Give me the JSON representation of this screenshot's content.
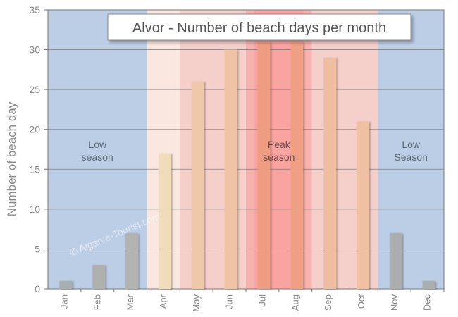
{
  "chart_data": {
    "type": "bar",
    "title": "Alvor - Number of beach days per month",
    "xlabel": "",
    "ylabel": "Number of beach day",
    "ylim": [
      0,
      35
    ],
    "yticks": [
      0,
      5,
      10,
      15,
      20,
      25,
      30,
      35
    ],
    "grid": true,
    "legend": "none",
    "categories": [
      "Jan",
      "Feb",
      "Mar",
      "Apr",
      "May",
      "Jun",
      "Jul",
      "Aug",
      "Sep",
      "Oct",
      "Nov",
      "Dec"
    ],
    "values": [
      1,
      3,
      7,
      17,
      26,
      30,
      31,
      31,
      29,
      21,
      7,
      1
    ],
    "seasons": [
      {
        "name": "low-season-start",
        "label_lines": [
          "Low",
          "season"
        ],
        "months": [
          "Jan",
          "Feb",
          "Mar"
        ],
        "color": "#bccde6"
      },
      {
        "name": "shoulder-april",
        "label_lines": [],
        "months": [
          "Apr"
        ],
        "color": "#f9e7e0"
      },
      {
        "name": "shoulder-may-jun",
        "label_lines": [],
        "months": [
          "May",
          "Jun"
        ],
        "color": "#f5cfca"
      },
      {
        "name": "peak-season",
        "label_lines": [
          "Peak",
          "season"
        ],
        "months": [
          "Jul",
          "Aug"
        ],
        "color": "#f8b2ae"
      },
      {
        "name": "shoulder-sep-oct",
        "label_lines": [],
        "months": [
          "Sep",
          "Oct"
        ],
        "color": "#f5cfca"
      },
      {
        "name": "low-season-end",
        "label_lines": [
          "Low",
          "Season"
        ],
        "months": [
          "Nov",
          "Dec"
        ],
        "color": "#bccde6"
      }
    ],
    "bar_colors": [
      "#a9aeae",
      "#aeb1ad",
      "#b1b4b0",
      "#f0dcb8",
      "#efc8a9",
      "#efc3a4",
      "#ef9d82",
      "#efa084",
      "#efbea1",
      "#efc0a2",
      "#aaaeae",
      "#aaaeae"
    ],
    "watermark": "© Algarve-Tourist.com"
  }
}
